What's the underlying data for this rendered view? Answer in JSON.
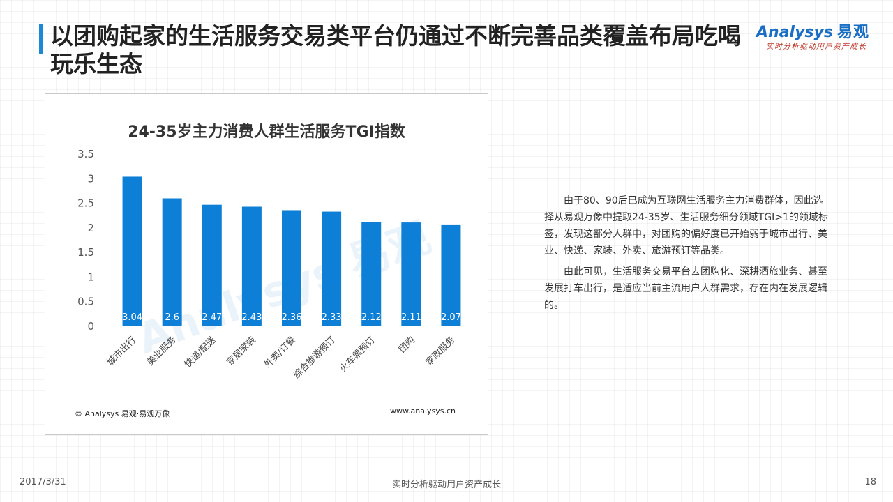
{
  "header": {
    "title": "以团购起家的生活服务交易类平台仍通过不断完善品类覆盖布局吃喝玩乐生态",
    "logo_text": "Analysys",
    "logo_cn": "易观",
    "logo_slogan": "实时分析驱动用户资产成长"
  },
  "chart_data": {
    "type": "bar",
    "title": "24-35岁主力消费人群生活服务TGI指数",
    "categories": [
      "城市出行",
      "美业服务",
      "快递/配送",
      "家居家装",
      "外卖/订餐",
      "综合旅游预订",
      "火车票预订",
      "团购",
      "家政服务"
    ],
    "values": [
      3.04,
      2.6,
      2.47,
      2.43,
      2.36,
      2.33,
      2.12,
      2.11,
      2.07
    ],
    "value_labels": [
      "3.04",
      "2.6",
      "2.47",
      "2.43",
      "2.36",
      "2.33",
      "2.12",
      "2.11",
      "2.07"
    ],
    "yticks": [
      "0",
      "0.5",
      "1",
      "1.5",
      "2",
      "2.5",
      "3",
      "3.5"
    ],
    "ylim": [
      0,
      3.5
    ],
    "xlabel": "",
    "ylabel": "",
    "grid": false,
    "bar_color": "#0d7fd6",
    "source": "© Analysys 易观·易观万像",
    "url": "www.analysys.cn"
  },
  "description": {
    "p1": "由于80、90后已成为互联网生活服务主力消费群体，因此选择从易观万像中提取24-35岁、生活服务细分领域TGI>1的领域标签，发现这部分人群中，对团购的偏好度已开始弱于城市出行、美业、快递、家装、外卖、旅游预订等品类。",
    "p2": "由此可见，生活服务交易平台去团购化、深耕酒旅业务、甚至发展打车出行，是适应当前主流用户人群需求，存在内在发展逻辑的。"
  },
  "footer": {
    "date": "2017/3/31",
    "slogan": "实时分析驱动用户资产成长",
    "page": "18"
  }
}
